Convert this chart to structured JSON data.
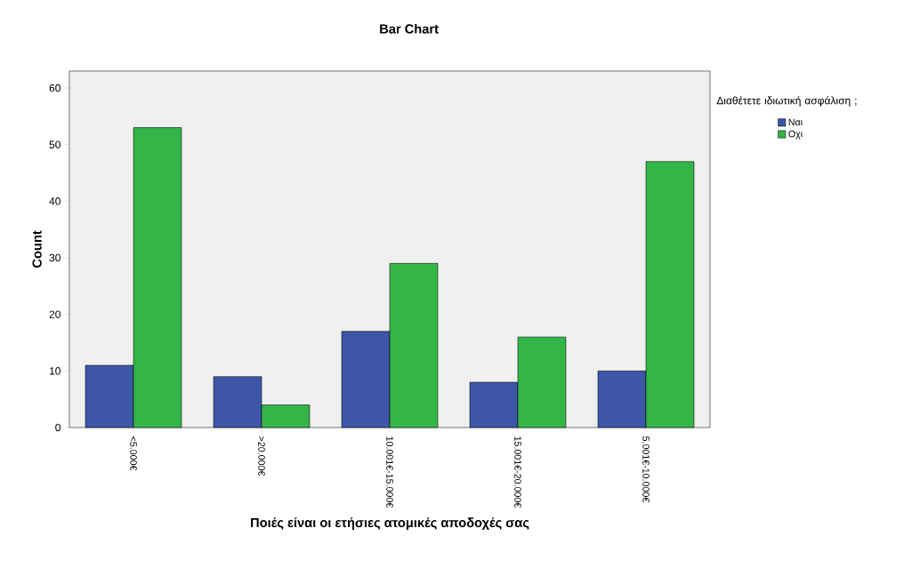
{
  "chart_data": {
    "type": "bar",
    "title": "Bar Chart",
    "xlabel": "Ποιές είναι  οι ετήσιες ατομικές αποδοχές σας",
    "ylabel": "Count",
    "legend_title": "Διαθέτετε ιδιωτική ασφάλιση ;",
    "categories": [
      "<5.000€",
      ">20.000€",
      "10.001€-15.000€",
      "15.001€-20.000€",
      "5.001€-10.000€"
    ],
    "series": [
      {
        "name": "Ναι",
        "color": "#3e56a8",
        "values": [
          11,
          9,
          17,
          8,
          10
        ]
      },
      {
        "name": "Οχι",
        "color": "#33b548",
        "values": [
          53,
          4,
          29,
          16,
          47
        ]
      }
    ],
    "ylim": [
      0,
      63
    ],
    "yticks": [
      0,
      10,
      20,
      30,
      40,
      50,
      60
    ],
    "grid": false,
    "legend": "right"
  }
}
